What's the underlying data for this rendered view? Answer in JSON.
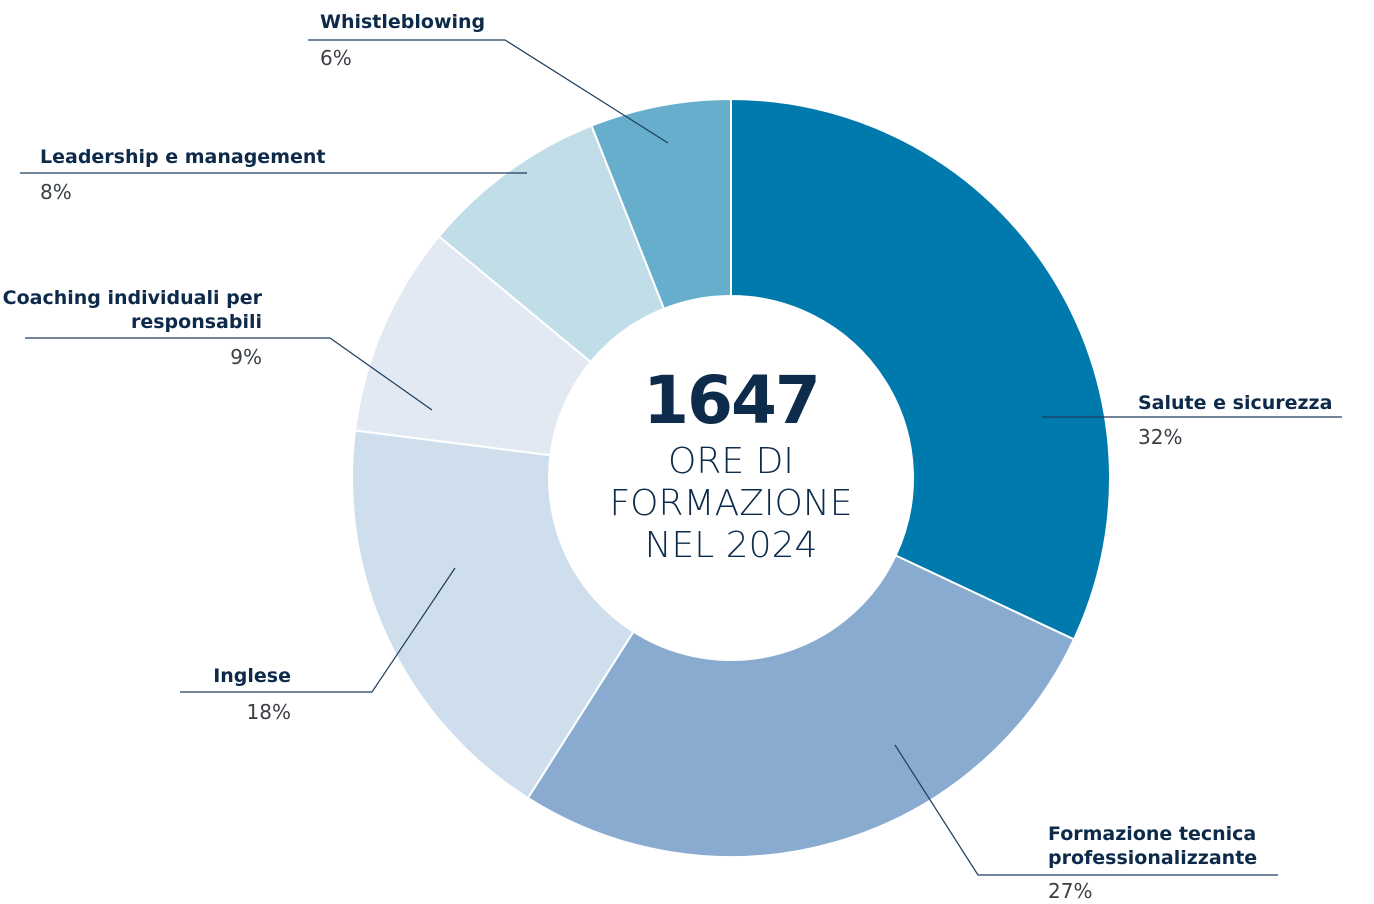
{
  "chart_data": {
    "type": "donut",
    "categories": [
      "Salute e sicurezza",
      "Formazione tecnica professionalizzante",
      "Inglese",
      "Coaching individuali per responsabili",
      "Leadership e management",
      "Whistleblowing"
    ],
    "values": [
      32,
      27,
      18,
      9,
      8,
      6
    ],
    "value_labels": [
      "32%",
      "27%",
      "18%",
      "9%",
      "8%",
      "6%"
    ],
    "colors": [
      "#0079ad",
      "#8aabd0",
      "#cfdeed",
      "#e2e9f2",
      "#c1dde8",
      "#67aecd"
    ],
    "center_value": 1647,
    "center_lines": [
      "ORE DI",
      "FORMAZIONE",
      "NEL 2024"
    ]
  }
}
